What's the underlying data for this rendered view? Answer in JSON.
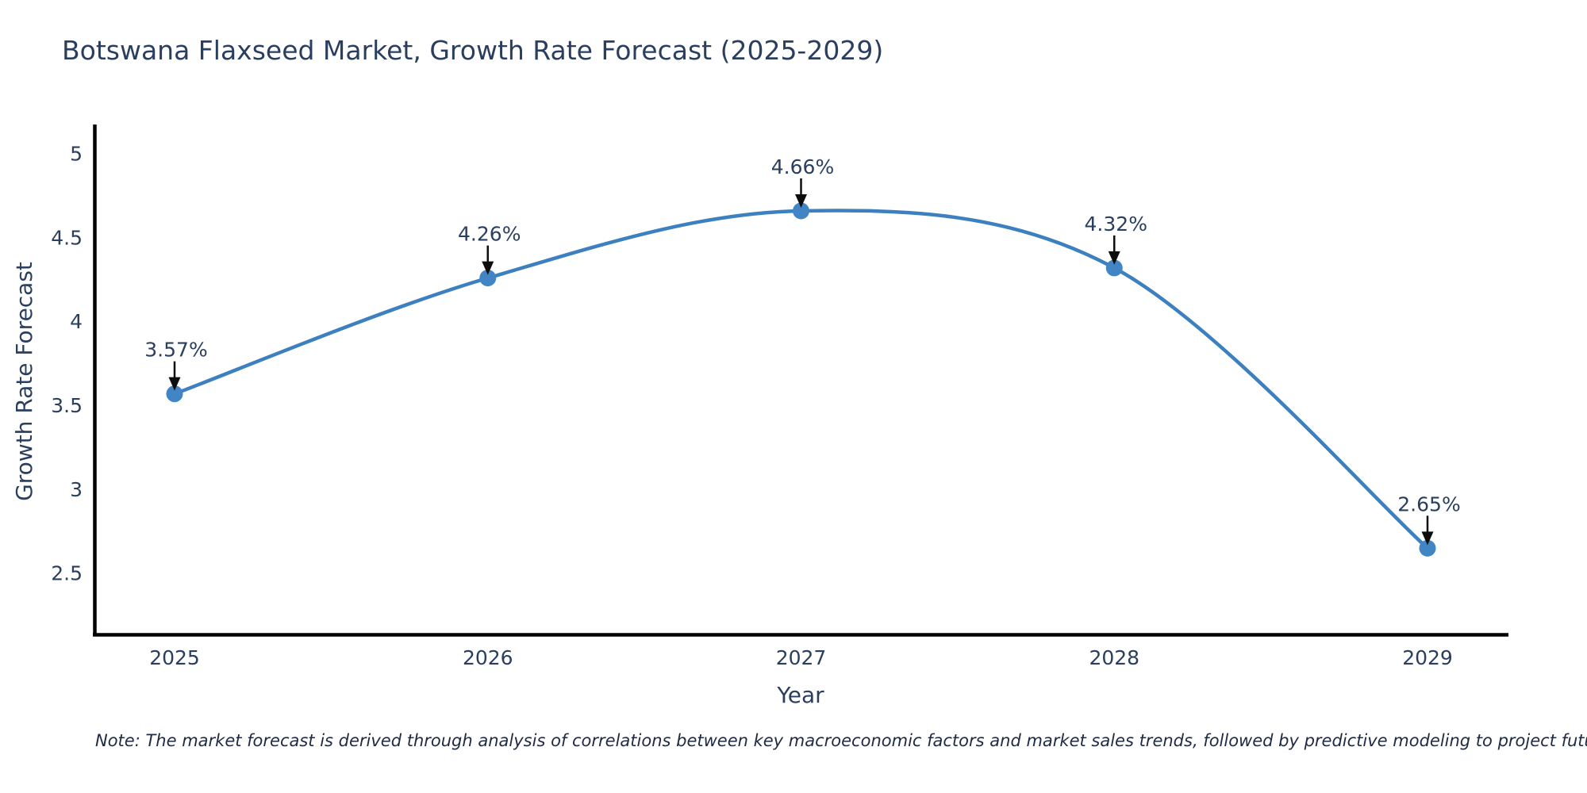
{
  "chart_data": {
    "type": "line",
    "title": "Botswana Flaxseed Market, Growth Rate Forecast (2025-2029)",
    "xlabel": "Year",
    "ylabel": "Growth Rate Forecast",
    "x": [
      2025,
      2026,
      2027,
      2028,
      2029
    ],
    "values": [
      3.57,
      4.26,
      4.66,
      4.32,
      2.65
    ],
    "point_labels": [
      "3.57%",
      "4.26%",
      "4.66%",
      "4.32%",
      "2.65%"
    ],
    "xtick_labels": [
      "2025",
      "2026",
      "2027",
      "2028",
      "2029"
    ],
    "yticks": {
      "values": [
        5,
        4.5,
        4,
        3.5,
        3,
        2.5
      ],
      "labels": [
        "5",
        "4.5",
        "4",
        "3.5",
        "3",
        "2.5"
      ]
    },
    "ylim": [
      2.13,
      5.16
    ],
    "line_shape": "spline",
    "grid": false,
    "legend_position": "none",
    "note": "Note: The market forecast is derived through analysis of correlations between key macroeconomic factors and market sales trends, followed by predictive modeling to project future sales",
    "colors": {
      "line": "#3d80c0",
      "marker": "#4285c4",
      "text": "#2a3f5f",
      "axis": "#000000",
      "arrow": "#0d0d0d",
      "note": "#1f2a44",
      "background": "#ffffff"
    }
  }
}
